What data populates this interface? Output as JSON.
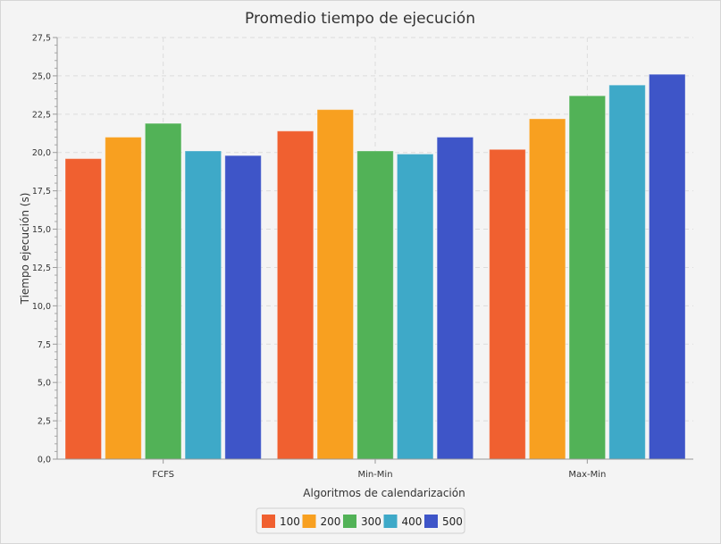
{
  "chart_data": {
    "type": "bar",
    "title": "Promedio tiempo de ejecución",
    "xlabel": "Algoritmos de calendarización",
    "ylabel": "Tiempo ejecución (s)",
    "categories": [
      "FCFS",
      "Min-Min",
      "Max-Min"
    ],
    "ylim": [
      0,
      27.5
    ],
    "yticks": [
      "0,0",
      "2,5",
      "5,0",
      "7,5",
      "10,0",
      "12,5",
      "15,0",
      "17,5",
      "20,0",
      "22,5",
      "25,0",
      "27,5"
    ],
    "grid": true,
    "legend_position": "bottom",
    "series": [
      {
        "name": "100",
        "color": "#f06030",
        "values": [
          19.6,
          21.4,
          20.2
        ]
      },
      {
        "name": "200",
        "color": "#f8a020",
        "values": [
          21.0,
          22.8,
          22.2
        ]
      },
      {
        "name": "300",
        "color": "#52b257",
        "values": [
          21.9,
          20.1,
          23.7
        ]
      },
      {
        "name": "400",
        "color": "#3ea9c8",
        "values": [
          20.1,
          19.9,
          24.4
        ]
      },
      {
        "name": "500",
        "color": "#3e55c8",
        "values": [
          19.8,
          21.0,
          25.1
        ]
      }
    ]
  }
}
